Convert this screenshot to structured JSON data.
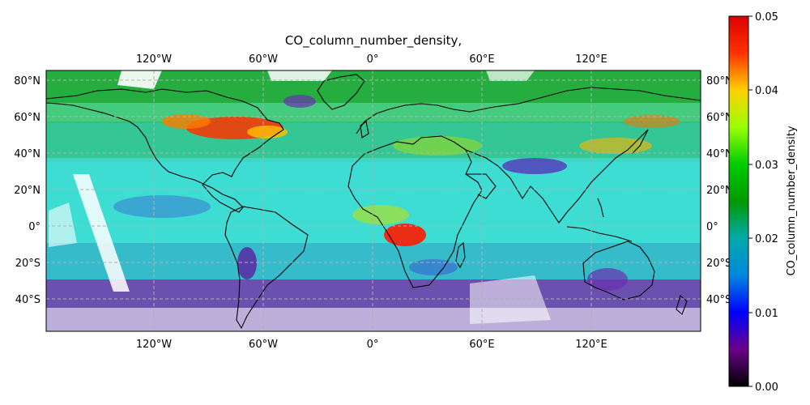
{
  "title": "CO_column_number_density,",
  "colorbar": {
    "label": "CO_column_number_density",
    "ticks": [
      "0.00",
      "0.01",
      "0.02",
      "0.03",
      "0.04",
      "0.05"
    ],
    "range": [
      0.0,
      0.05
    ],
    "colormap": "nipy_spectral"
  },
  "map": {
    "projection": "PlateCarree",
    "lon_range": [
      -180,
      180
    ],
    "lat_range": [
      -57,
      86
    ],
    "gridlines": "dashed",
    "coastlines": true,
    "lon_ticks": [
      "120°W",
      "60°W",
      "0°",
      "60°E",
      "120°E"
    ],
    "lat_ticks": [
      "80°N",
      "60°N",
      "40°N",
      "20°N",
      "0°",
      "20°S",
      "40°S"
    ]
  },
  "colors": {
    "background": "#ffffff",
    "coastline": "#000000",
    "gridline": "#b0b0b0"
  }
}
